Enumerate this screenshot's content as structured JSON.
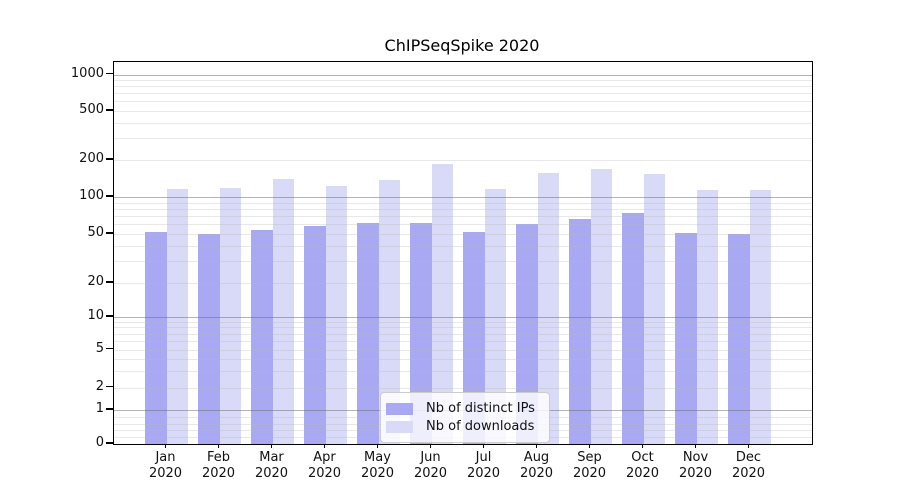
{
  "title": "ChIPSeqSpike 2020",
  "colors": {
    "ips": "#a8a8f3",
    "downloads": "#d9d9f8",
    "grid_major": "rgba(105,105,105,0.50)",
    "grid_minor": "rgba(185,185,185,0.32)",
    "axis": "#000000"
  },
  "legend": {
    "items": [
      {
        "label": "Nb of distinct IPs",
        "key": "ips"
      },
      {
        "label": "Nb of downloads",
        "key": "downloads"
      }
    ]
  },
  "y_axis": {
    "tick_labels": [
      "0",
      "1",
      "2",
      "5",
      "10",
      "20",
      "50",
      "100",
      "200",
      "500",
      "1000"
    ]
  },
  "x_axis": {
    "months": [
      "Jan",
      "Feb",
      "Mar",
      "Apr",
      "May",
      "Jun",
      "Jul",
      "Aug",
      "Sep",
      "Oct",
      "Nov",
      "Dec"
    ],
    "year": "2020"
  },
  "chart_data": {
    "type": "bar",
    "title": "ChIPSeqSpike 2020",
    "categories": [
      "Jan 2020",
      "Feb 2020",
      "Mar 2020",
      "Apr 2020",
      "May 2020",
      "Jun 2020",
      "Jul 2020",
      "Aug 2020",
      "Sep 2020",
      "Oct 2020",
      "Nov 2020",
      "Dec 2020"
    ],
    "series": [
      {
        "name": "Nb of distinct IPs",
        "values": [
          52,
          50,
          54,
          58,
          62,
          61,
          52,
          60,
          66,
          74,
          51,
          50
        ]
      },
      {
        "name": "Nb of downloads",
        "values": [
          116,
          119,
          140,
          124,
          138,
          184,
          116,
          158,
          170,
          154,
          113,
          113
        ]
      }
    ],
    "y_scale": "symlog",
    "y_ticks": [
      0,
      1,
      2,
      5,
      10,
      20,
      50,
      100,
      200,
      500,
      1000
    ],
    "ylim": [
      0,
      1300
    ],
    "grid": "horizontal, major (powers of 10, dark gray) + minor (light gray), drawn over bars",
    "legend_position": "inside plot, lower center-left"
  }
}
